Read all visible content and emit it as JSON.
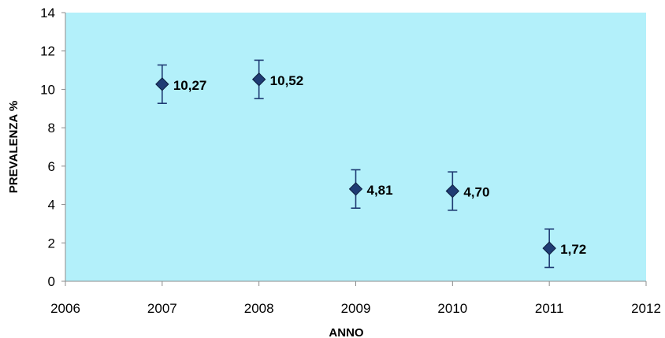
{
  "chart_data": {
    "type": "scatter",
    "xlabel": "ANNO",
    "ylabel": "PREVALENZA %",
    "xlim": [
      2006,
      2012
    ],
    "ylim": [
      0,
      14
    ],
    "xticks": [
      2006,
      2007,
      2008,
      2009,
      2010,
      2011,
      2012
    ],
    "yticks": [
      0,
      2,
      4,
      6,
      8,
      10,
      12,
      14
    ],
    "grid": false,
    "plot_background": "#b3f0fa",
    "marker_color": "#1f3b73",
    "error_bar_color": "#1f3b73",
    "points": [
      {
        "x": 2007,
        "y": 10.27,
        "label": "10,27",
        "y_low": 9.27,
        "y_high": 11.27
      },
      {
        "x": 2008,
        "y": 10.52,
        "label": "10,52",
        "y_low": 9.52,
        "y_high": 11.52
      },
      {
        "x": 2009,
        "y": 4.81,
        "label": "4,81",
        "y_low": 3.81,
        "y_high": 5.81
      },
      {
        "x": 2010,
        "y": 4.7,
        "label": "4,70",
        "y_low": 3.7,
        "y_high": 5.7
      },
      {
        "x": 2011,
        "y": 1.72,
        "label": "1,72",
        "y_low": 0.72,
        "y_high": 2.72
      }
    ]
  }
}
